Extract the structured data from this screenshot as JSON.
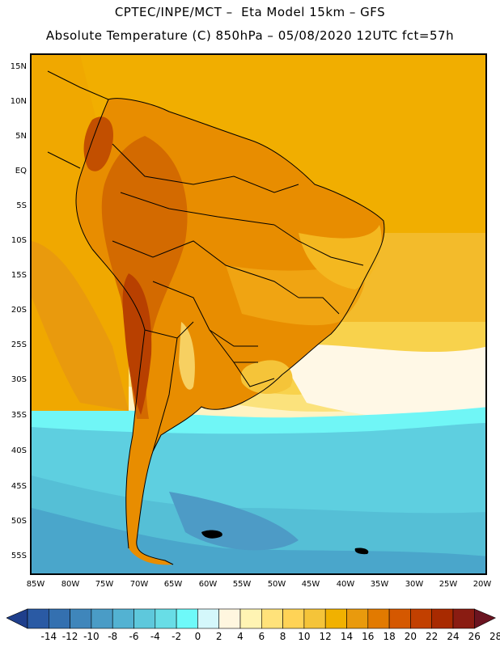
{
  "title": {
    "line1": "CPTEC/INPE/MCT –  Eta Model 15km – GFS",
    "line2": "Absolute Temperature (C) 850hPa – 05/08/2020 12UTC fct=57h"
  },
  "latitude_labels": [
    "15N",
    "10N",
    "5N",
    "EQ",
    "5S",
    "10S",
    "15S",
    "20S",
    "25S",
    "30S",
    "35S",
    "40S",
    "45S",
    "50S",
    "55S"
  ],
  "longitude_labels": [
    "85W",
    "80W",
    "75W",
    "70W",
    "65W",
    "60W",
    "55W",
    "50W",
    "45W",
    "40W",
    "35W",
    "30W",
    "25W",
    "20W"
  ],
  "colorbar": {
    "labels": [
      "-14",
      "-12",
      "-10",
      "-8",
      "-6",
      "-4",
      "-2",
      "0",
      "2",
      "4",
      "6",
      "8",
      "10",
      "12",
      "14",
      "16",
      "18",
      "20",
      "22",
      "24",
      "26",
      "28"
    ],
    "colors": [
      "#1f3f8c",
      "#2a5aa4",
      "#3470b0",
      "#3f86bb",
      "#4a9cc6",
      "#53b2d2",
      "#5ec8dc",
      "#68dde6",
      "#6ef9f9",
      "#d4f7fb",
      "#fff6df",
      "#fff4b3",
      "#ffe27a",
      "#ffd356",
      "#f5c439",
      "#f1b100",
      "#e99a0d",
      "#e27a00",
      "#d55800",
      "#c24000",
      "#a82a00",
      "#8a1c12",
      "#6b1420"
    ]
  }
}
